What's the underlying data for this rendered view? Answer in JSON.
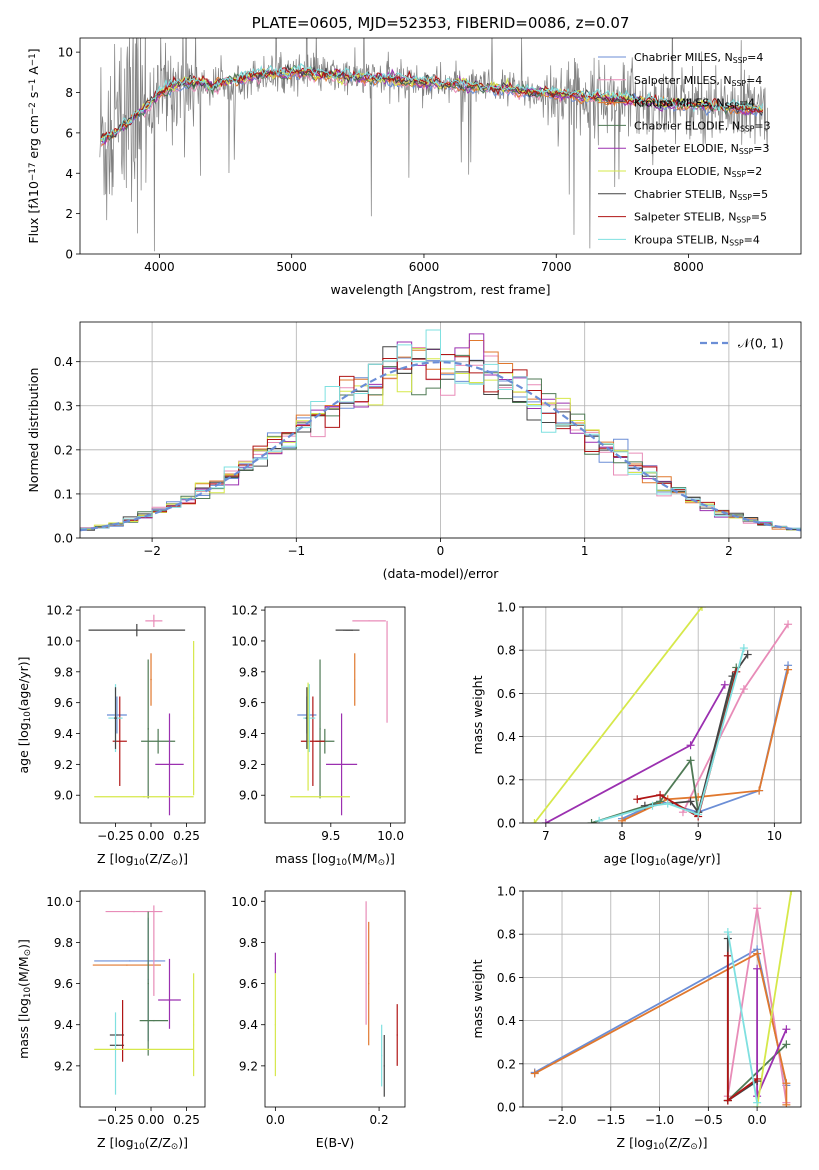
{
  "chart_data": [
    {
      "id": "spectrum",
      "type": "line",
      "title": "PLATE=0605, MJD=52353, FIBERID=0086, z=0.07",
      "xlabel": "wavelength [Angstrom, rest frame]",
      "ylabel_parts": [
        "Flux [f",
        "λ",
        "10",
        "−17",
        " erg cm",
        "−2",
        " s",
        "−1",
        " A",
        "−1",
        "]"
      ],
      "xlim": [
        3400,
        8850
      ],
      "ylim": [
        0,
        10.7
      ],
      "xticks": [
        4000,
        5000,
        6000,
        7000,
        8000
      ],
      "yticks": [
        0,
        2,
        4,
        6,
        8,
        10
      ],
      "legend_position": "upper-right",
      "series": [
        {
          "name": "Chabrier MILES, N",
          "sub": "SSP",
          "suffix": "=4",
          "color": "#6b8ed6"
        },
        {
          "name": "Salpeter MILES, N",
          "sub": "SSP",
          "suffix": "=4",
          "color": "#e88cb8"
        },
        {
          "name": "Kroupa MILES, N",
          "sub": "SSP",
          "suffix": "=4",
          "color": "#e0782e"
        },
        {
          "name": "Chabrier ELODIE, N",
          "sub": "SSP",
          "suffix": "=3",
          "color": "#4f7a55"
        },
        {
          "name": "Salpeter ELODIE, N",
          "sub": "SSP",
          "suffix": "=3",
          "color": "#9b30b0"
        },
        {
          "name": "Kroupa ELODIE, N",
          "sub": "SSP",
          "suffix": "=2",
          "color": "#d6e84a"
        },
        {
          "name": "Chabrier STELIB, N",
          "sub": "SSP",
          "suffix": "=5",
          "color": "#444444"
        },
        {
          "name": "Salpeter STELIB, N",
          "sub": "SSP",
          "suffix": "=5",
          "color": "#b01515"
        },
        {
          "name": "Kroupa STELIB, N",
          "sub": "SSP",
          "suffix": "=4",
          "color": "#7fe0e0"
        }
      ],
      "data_color": "#808080",
      "continuum": {
        "x": [
          3550,
          3650,
          3750,
          3850,
          3950,
          4000,
          4100,
          4200,
          4300,
          4400,
          4500,
          4600,
          4800,
          5000,
          5200,
          5400,
          5600,
          5800,
          6000,
          6200,
          6400,
          6600,
          6800,
          7000,
          7200,
          7400,
          7600,
          7800,
          8000,
          8200,
          8400,
          8600
        ],
        "y": [
          5.6,
          6.0,
          6.4,
          7.0,
          7.6,
          8.0,
          8.3,
          8.5,
          8.5,
          8.3,
          8.6,
          8.7,
          8.9,
          9.0,
          8.9,
          8.8,
          8.7,
          8.6,
          8.5,
          8.4,
          8.3,
          8.2,
          8.0,
          7.9,
          7.8,
          7.7,
          7.6,
          7.5,
          7.4,
          7.3,
          7.2,
          7.1
        ]
      }
    },
    {
      "id": "residuals",
      "type": "histogram",
      "xlabel": "(data-model)/error",
      "ylabel": "Normed distribution",
      "xlim": [
        -2.5,
        2.5
      ],
      "ylim": [
        0,
        0.49
      ],
      "xticks": [
        -2,
        -1,
        0,
        1,
        2
      ],
      "yticks": [
        0.0,
        0.1,
        0.2,
        0.3,
        0.4
      ],
      "grid": true,
      "legend_position": "upper-right",
      "normal_label": "𝒩(0, 1)",
      "normal_color": "#6b8ed6"
    },
    {
      "id": "age-vs-Z",
      "type": "errorbar",
      "xlabel": "Z [log10(Z/Z⊙)]",
      "xlabel_parts": [
        "Z [log",
        "10",
        "(Z/Z",
        "⊙",
        ")]"
      ],
      "ylabel_parts": [
        "age  [log",
        "10",
        "(age/yr)]"
      ],
      "xlim": [
        -0.5,
        0.38
      ],
      "ylim": [
        8.82,
        10.22
      ],
      "xticks": [
        -0.25,
        0.0,
        0.25
      ],
      "yticks": [
        9.0,
        9.2,
        9.4,
        9.6,
        9.8,
        10.0,
        10.2
      ],
      "points": [
        {
          "x": -0.24,
          "y": 9.52,
          "xerr": 0.07,
          "yerr": 0.12,
          "color": "#6b8ed6"
        },
        {
          "x": 0.0,
          "y": 9.75,
          "xerr": 0.005,
          "yerr": 0.17,
          "color": "#e0782e"
        },
        {
          "x": 0.02,
          "y": 10.13,
          "xerr": 0.06,
          "yerr": 0.04,
          "color": "#e88cb8"
        },
        {
          "x": -0.1,
          "y": 10.07,
          "xerr": 0.34,
          "yerr": 0.04,
          "color": "#444444"
        },
        {
          "x": -0.02,
          "y": 9.43,
          "xerr": 0.005,
          "yerr": 0.45,
          "color": "#4f7a55"
        },
        {
          "x": 0.05,
          "y": 9.35,
          "xerr": 0.12,
          "yerr": 0.08,
          "color": "#4f7a55"
        },
        {
          "x": 0.13,
          "y": 9.2,
          "xerr": 0.1,
          "yerr": 0.33,
          "color": "#9b30b0"
        },
        {
          "x": -0.22,
          "y": 9.35,
          "xerr": 0.05,
          "yerr": 0.29,
          "color": "#b01515"
        },
        {
          "x": -0.25,
          "y": 9.5,
          "xerr": 0.05,
          "yerr": 0.22,
          "color": "#7fe0e0"
        },
        {
          "x": -0.25,
          "y": 9.5,
          "xerr": 0.01,
          "yerr": 0.2,
          "color": "#444444"
        },
        {
          "x": -0.05,
          "y": 8.99,
          "xerr": 0.35,
          "yerr": 0.005,
          "color": "#d6e84a"
        },
        {
          "x": 0.3,
          "y": 9.5,
          "xerr": 0.003,
          "yerr": 0.5,
          "color": "#d6e84a"
        }
      ]
    },
    {
      "id": "age-vs-mass",
      "type": "errorbar",
      "xlabel_parts": [
        "mass [log",
        "10",
        "(M/M",
        "⊙",
        ")]"
      ],
      "xlim": [
        8.95,
        10.12
      ],
      "ylim": [
        8.82,
        10.22
      ],
      "xticks": [
        9.5,
        10.0
      ],
      "yticks": [
        9.0,
        9.2,
        9.4,
        9.6,
        9.8,
        10.0,
        10.2
      ],
      "points": [
        {
          "x": 9.3,
          "y": 9.52,
          "xerr": 0.08,
          "yerr": 0.12,
          "color": "#6b8ed6"
        },
        {
          "x": 9.7,
          "y": 9.75,
          "xerr": 0.003,
          "yerr": 0.17,
          "color": "#e0782e"
        },
        {
          "x": 9.82,
          "y": 10.13,
          "xerr": 0.14,
          "yerr": 0.004,
          "color": "#e88cb8"
        },
        {
          "x": 9.97,
          "y": 9.8,
          "xerr": 0.003,
          "yerr": 0.33,
          "color": "#e88cb8"
        },
        {
          "x": 9.68,
          "y": 10.07,
          "xerr": 0.06,
          "yerr": 0.004,
          "color": "#444444"
        },
        {
          "x": 9.61,
          "y": 10.07,
          "xerr": 0.07,
          "yerr": 0.004,
          "color": "#444444"
        },
        {
          "x": 9.41,
          "y": 9.43,
          "xerr": 0.005,
          "yerr": 0.45,
          "color": "#4f7a55"
        },
        {
          "x": 9.45,
          "y": 9.35,
          "xerr": 0.08,
          "yerr": 0.08,
          "color": "#4f7a55"
        },
        {
          "x": 9.59,
          "y": 9.2,
          "xerr": 0.13,
          "yerr": 0.33,
          "color": "#9b30b0"
        },
        {
          "x": 9.35,
          "y": 9.35,
          "xerr": 0.1,
          "yerr": 0.29,
          "color": "#b01515"
        },
        {
          "x": 9.32,
          "y": 9.5,
          "xerr": 0.05,
          "yerr": 0.22,
          "color": "#7fe0e0"
        },
        {
          "x": 9.3,
          "y": 9.5,
          "xerr": 0.01,
          "yerr": 0.2,
          "color": "#444444"
        },
        {
          "x": 9.41,
          "y": 8.99,
          "xerr": 0.25,
          "yerr": 0.003,
          "color": "#d6e84a"
        },
        {
          "x": 9.31,
          "y": 9.38,
          "xerr": 0.003,
          "yerr": 0.35,
          "color": "#d6e84a"
        }
      ]
    },
    {
      "id": "massweight-vs-age",
      "type": "line",
      "ylabel": "mass weight",
      "xlabel_parts": [
        "age  [log",
        "10",
        "(age/yr)]"
      ],
      "xlim": [
        6.7,
        10.35
      ],
      "ylim": [
        0,
        1.0
      ],
      "xticks": [
        7,
        8,
        9,
        10
      ],
      "yticks": [
        0.0,
        0.2,
        0.4,
        0.6,
        0.8,
        1.0
      ],
      "grid": true,
      "series": [
        {
          "color": "#6b8ed6",
          "x": [
            8.0,
            8.5,
            9.0,
            9.8,
            10.18
          ],
          "y": [
            0.02,
            0.1,
            0.05,
            0.15,
            0.73
          ]
        },
        {
          "color": "#e88cb8",
          "x": [
            8.8,
            9.6,
            10.18
          ],
          "y": [
            0.05,
            0.62,
            0.92
          ]
        },
        {
          "color": "#e0782e",
          "x": [
            8.0,
            8.6,
            9.0,
            9.8,
            10.18
          ],
          "y": [
            0.01,
            0.11,
            0.12,
            0.15,
            0.71
          ]
        },
        {
          "color": "#4f7a55",
          "x": [
            7.6,
            8.5,
            8.9,
            9.0,
            9.5
          ],
          "y": [
            0.0,
            0.1,
            0.29,
            0.05,
            0.72
          ]
        },
        {
          "color": "#9b30b0",
          "x": [
            7.0,
            8.9,
            9.35
          ],
          "y": [
            0.0,
            0.36,
            0.64
          ]
        },
        {
          "color": "#d6e84a",
          "x": [
            6.85,
            9.05
          ],
          "y": [
            0.0,
            1.0
          ]
        },
        {
          "color": "#444444",
          "x": [
            8.3,
            8.9,
            9.0,
            9.45,
            9.65
          ],
          "y": [
            0.08,
            0.1,
            0.05,
            0.68,
            0.78
          ]
        },
        {
          "color": "#b01515",
          "x": [
            8.2,
            8.5,
            9.0,
            9.5
          ],
          "y": [
            0.11,
            0.13,
            0.03,
            0.7
          ]
        },
        {
          "color": "#7fe0e0",
          "x": [
            7.7,
            8.4,
            8.6,
            9.0,
            9.6
          ],
          "y": [
            0.01,
            0.08,
            0.09,
            0.04,
            0.81
          ]
        }
      ]
    },
    {
      "id": "mass-vs-Z",
      "type": "errorbar",
      "xlabel_parts": [
        "Z [log",
        "10",
        "(Z/Z",
        "⊙",
        ")]"
      ],
      "ylabel_parts": [
        "mass [log",
        "10",
        "(M/M",
        "⊙",
        ")]"
      ],
      "xlim": [
        -0.5,
        0.38
      ],
      "ylim": [
        9.0,
        10.05
      ],
      "xticks": [
        -0.25,
        0.0,
        0.25
      ],
      "yticks": [
        9.2,
        9.4,
        9.6,
        9.8,
        10.0
      ],
      "points": [
        {
          "x": -0.15,
          "y": 9.71,
          "xerr": 0.25,
          "yerr": 0.003,
          "color": "#6b8ed6"
        },
        {
          "x": -0.02,
          "y": 9.62,
          "xerr": 0.005,
          "yerr": 0.3,
          "color": "#6b8ed6"
        },
        {
          "x": -0.17,
          "y": 9.69,
          "xerr": 0.24,
          "yerr": 0.003,
          "color": "#e0782e"
        },
        {
          "x": -0.12,
          "y": 9.95,
          "xerr": 0.2,
          "yerr": 0.003,
          "color": "#e88cb8"
        },
        {
          "x": 0.02,
          "y": 9.76,
          "xerr": 0.003,
          "yerr": 0.22,
          "color": "#e88cb8"
        },
        {
          "x": -0.02,
          "y": 9.6,
          "xerr": 0.005,
          "yerr": 0.35,
          "color": "#4f7a55"
        },
        {
          "x": 0.02,
          "y": 9.42,
          "xerr": 0.1,
          "yerr": 0.003,
          "color": "#4f7a55"
        },
        {
          "x": 0.13,
          "y": 9.52,
          "xerr": 0.08,
          "yerr": 0.003,
          "color": "#9b30b0"
        },
        {
          "x": 0.13,
          "y": 9.55,
          "xerr": 0.003,
          "yerr": 0.17,
          "color": "#9b30b0"
        },
        {
          "x": -0.24,
          "y": 9.35,
          "xerr": 0.05,
          "yerr": 0.003,
          "color": "#444444"
        },
        {
          "x": -0.24,
          "y": 9.3,
          "xerr": 0.05,
          "yerr": 0.003,
          "color": "#444444"
        },
        {
          "x": -0.2,
          "y": 9.37,
          "xerr": 0.003,
          "yerr": 0.15,
          "color": "#b01515"
        },
        {
          "x": -0.25,
          "y": 9.26,
          "xerr": 0.003,
          "yerr": 0.2,
          "color": "#7fe0e0"
        },
        {
          "x": -0.05,
          "y": 9.28,
          "xerr": 0.35,
          "yerr": 0.003,
          "color": "#d6e84a"
        },
        {
          "x": 0.3,
          "y": 9.4,
          "xerr": 0.003,
          "yerr": 0.25,
          "color": "#d6e84a"
        }
      ]
    },
    {
      "id": "mass-vs-EBV",
      "type": "errorbar",
      "xlabel": "E(B-V)",
      "xlim": [
        -0.02,
        0.25
      ],
      "ylim": [
        9.0,
        10.05
      ],
      "xticks": [
        0.0,
        0.2
      ],
      "yticks": [
        9.2,
        9.4,
        9.6,
        9.8,
        10.0
      ],
      "points": [
        {
          "x": 0.0,
          "y": 9.7,
          "xerr": 0.001,
          "yerr": 0.05,
          "color": "#9b30b0"
        },
        {
          "x": 0.0,
          "y": 9.4,
          "xerr": 0.001,
          "yerr": 0.25,
          "color": "#d6e84a"
        },
        {
          "x": 0.175,
          "y": 9.7,
          "xerr": 0.001,
          "yerr": 0.3,
          "color": "#e88cb8"
        },
        {
          "x": 0.18,
          "y": 9.6,
          "xerr": 0.001,
          "yerr": 0.3,
          "color": "#e0782e"
        },
        {
          "x": 0.205,
          "y": 9.25,
          "xerr": 0.001,
          "yerr": 0.15,
          "color": "#7fe0e0"
        },
        {
          "x": 0.21,
          "y": 9.2,
          "xerr": 0.001,
          "yerr": 0.15,
          "color": "#444444"
        },
        {
          "x": 0.235,
          "y": 9.35,
          "xerr": 0.001,
          "yerr": 0.15,
          "color": "#b01515"
        }
      ]
    },
    {
      "id": "massweight-vs-Z",
      "type": "line",
      "ylabel": "mass weight",
      "xlabel_parts": [
        "Z [log",
        "10",
        "(Z/Z",
        "⊙",
        ")]"
      ],
      "xlim": [
        -2.4,
        0.45
      ],
      "ylim": [
        0,
        1.0
      ],
      "xticks": [
        -2.0,
        -1.5,
        -1.0,
        -0.5,
        0.0
      ],
      "yticks": [
        0.0,
        0.2,
        0.4,
        0.6,
        0.8,
        1.0
      ],
      "grid": true,
      "series": [
        {
          "color": "#6b8ed6",
          "x": [
            -2.28,
            0.0,
            0.3
          ],
          "y": [
            0.16,
            0.73,
            0.1
          ]
        },
        {
          "color": "#e88cb8",
          "x": [
            -0.3,
            0.0,
            0.3
          ],
          "y": [
            0.05,
            0.92,
            0.02
          ]
        },
        {
          "color": "#e0782e",
          "x": [
            -2.28,
            0.0,
            0.3,
            0.3
          ],
          "y": [
            0.155,
            0.71,
            0.11,
            0.01
          ]
        },
        {
          "color": "#4f7a55",
          "x": [
            -0.3,
            0.3
          ],
          "y": [
            0.03,
            0.29
          ]
        },
        {
          "color": "#9b30b0",
          "x": [
            0.0,
            0.0,
            0.3
          ],
          "y": [
            0.64,
            0.05,
            0.36
          ]
        },
        {
          "color": "#d6e84a",
          "x": [
            0.0,
            0.35
          ],
          "y": [
            0.0,
            1.0
          ]
        },
        {
          "color": "#444444",
          "x": [
            -0.3,
            -0.3,
            0.0
          ],
          "y": [
            0.78,
            0.03,
            0.12
          ]
        },
        {
          "color": "#b01515",
          "x": [
            -0.3,
            -0.3,
            0.0
          ],
          "y": [
            0.7,
            0.03,
            0.13
          ]
        },
        {
          "color": "#7fe0e0",
          "x": [
            -0.3,
            0.0
          ],
          "y": [
            0.81,
            0.02
          ]
        }
      ]
    }
  ]
}
